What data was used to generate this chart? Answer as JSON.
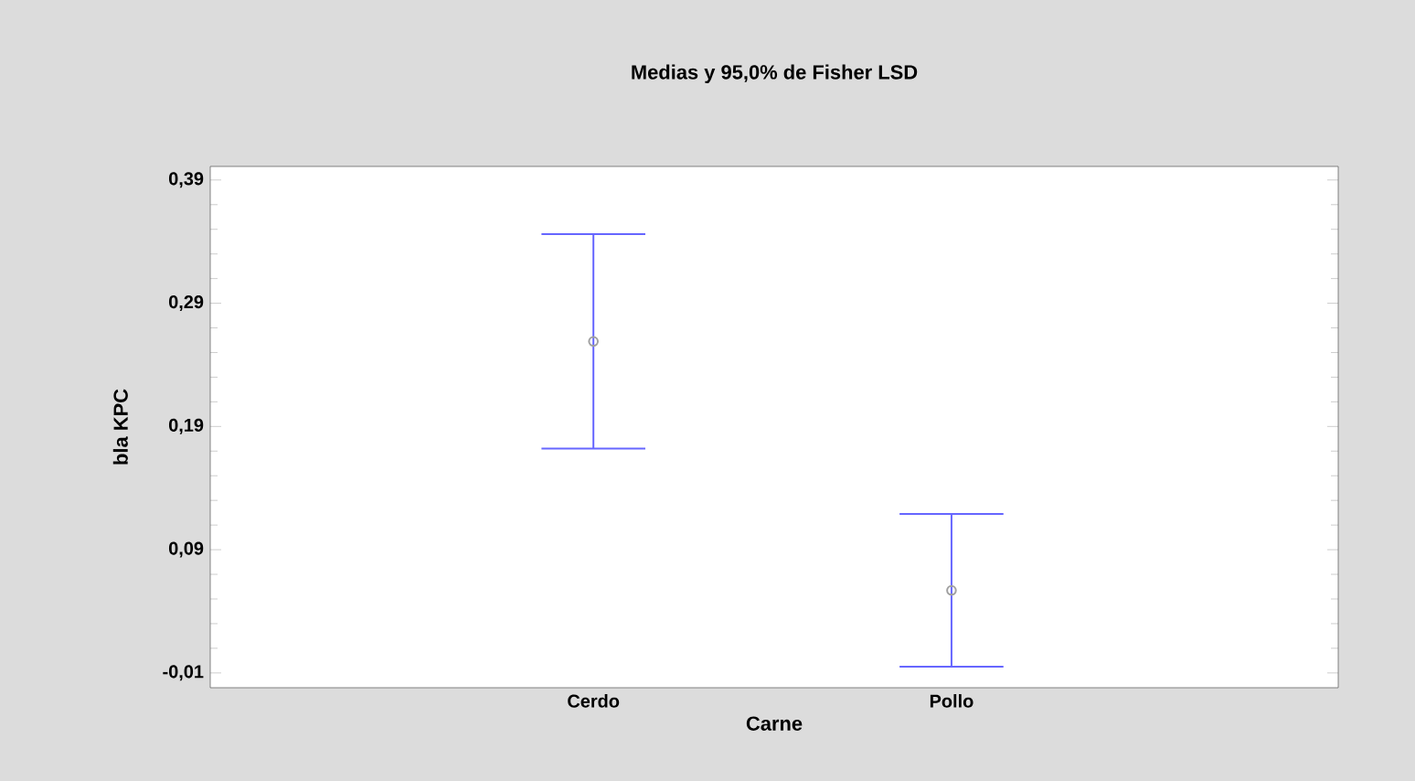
{
  "chart_data": {
    "type": "scatter",
    "title": "Medias y 95,0% de Fisher LSD",
    "xlabel": "Carne",
    "ylabel": "bla KPC",
    "categories": [
      "Cerdo",
      "Pollo"
    ],
    "values": [
      0.259,
      0.057
    ],
    "errors": [
      0.087,
      0.062
    ],
    "color": "#a0a0a0",
    "marker": "circle",
    "ylim": [
      -0.022,
      0.401
    ],
    "yticks": [
      {
        "value": -0.01,
        "label": "-0,01"
      },
      {
        "value": 0.09,
        "label": "0,09"
      },
      {
        "value": 0.19,
        "label": "0,19"
      },
      {
        "value": 0.29,
        "label": "0,29"
      },
      {
        "value": 0.39,
        "label": "0,39"
      }
    ],
    "grid": false
  }
}
